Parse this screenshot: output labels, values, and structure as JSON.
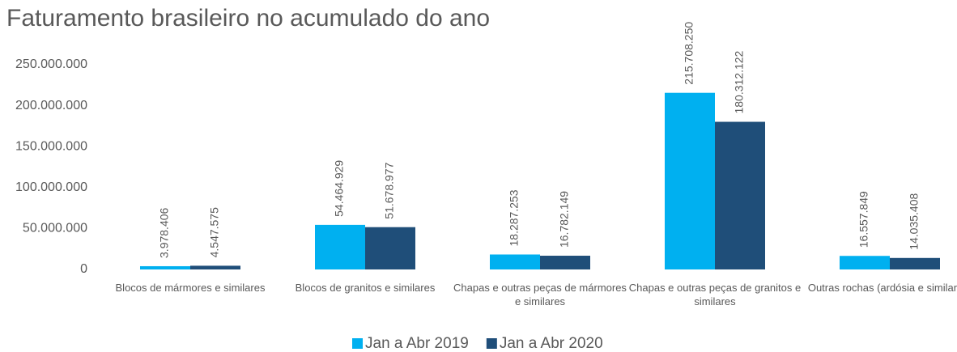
{
  "chart_data": {
    "type": "bar",
    "title": "Faturamento brasileiro no acumulado do ano",
    "categories": [
      "Blocos de mármores e similares",
      "Blocos de granitos e similares",
      "Chapas e outras peças de mármores e similares",
      "Chapas e outras peças de granitos e similares",
      "Outras rochas (ardósia e similares)"
    ],
    "series": [
      {
        "name": "Jan a Abr 2019",
        "color": "#00b0f0",
        "values": [
          3978406,
          54464929,
          18287253,
          215708250,
          16557849
        ],
        "value_labels": [
          "3.978.406",
          "54.464.929",
          "18.287.253",
          "215.708.250",
          "16.557.849"
        ]
      },
      {
        "name": "Jan a Abr 2020",
        "color": "#1f4e79",
        "values": [
          4547575,
          51678977,
          16782149,
          180312122,
          14035408
        ],
        "value_labels": [
          "4.547.575",
          "51.678.977",
          "16.782.149",
          "180.312.122",
          "14.035.408"
        ]
      }
    ],
    "ylim": [
      0,
      250000000
    ],
    "yticks": [
      0,
      {
        "value": 50000000,
        "label": "50.000.000"
      },
      {
        "value": 100000000,
        "label": "100.000.000"
      },
      {
        "value": 150000000,
        "label": "150.000.000"
      },
      {
        "value": 200000000,
        "label": "200.000.000"
      },
      {
        "value": 250000000,
        "label": "250.000.000"
      }
    ],
    "legend": "bottom"
  }
}
